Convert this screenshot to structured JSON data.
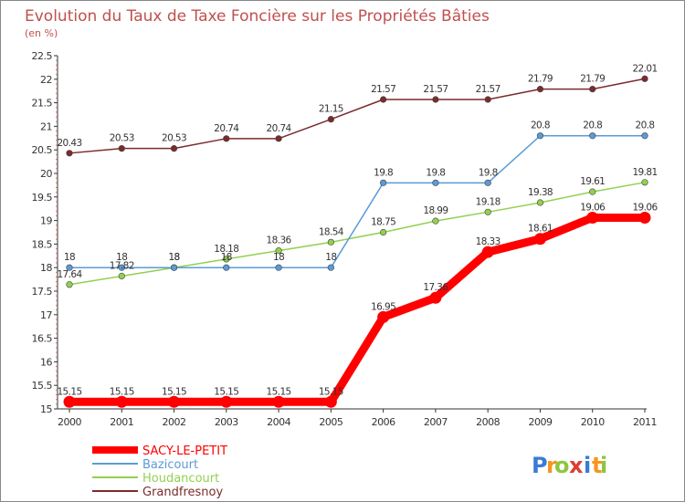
{
  "chart_data": {
    "type": "line",
    "title": "Evolution du Taux de Taxe Foncière sur les Propriétés Bâties",
    "unit_label": "(en %)",
    "x": [
      "2000",
      "2001",
      "2002",
      "2003",
      "2004",
      "2005",
      "2006",
      "2007",
      "2008",
      "2009",
      "2010",
      "2011"
    ],
    "ylim": [
      15,
      22.5
    ],
    "yticks": [
      "15",
      "15.5",
      "16",
      "16.5",
      "17",
      "17.5",
      "18",
      "18.5",
      "19",
      "19.5",
      "20",
      "20.5",
      "21",
      "21.5",
      "22",
      "22.5"
    ],
    "grid": false,
    "legend_position": "bottom-left",
    "series": [
      {
        "name": "SACY-LE-PETIT",
        "color": "#ff0000",
        "values": [
          15.15,
          15.15,
          15.15,
          15.15,
          15.15,
          15.15,
          16.95,
          17.36,
          18.33,
          18.61,
          19.06,
          19.06
        ],
        "labels": [
          "15.15",
          "15.15",
          "15.15",
          "15.15",
          "15.15",
          "15.15",
          "16.95",
          "17.36",
          "18.33",
          "18.61",
          "19.06",
          "19.06"
        ]
      },
      {
        "name": "Bazicourt",
        "color": "#5b9bd5",
        "values": [
          18,
          18,
          18,
          18,
          18,
          18,
          19.8,
          19.8,
          19.8,
          20.8,
          20.8,
          20.8
        ],
        "labels": [
          "18",
          "18",
          "18",
          "18",
          "18",
          "18",
          "19.8",
          "19.8",
          "19.8",
          "20.8",
          "20.8",
          "20.8"
        ]
      },
      {
        "name": "Houdancourt",
        "color": "#92d050",
        "values": [
          17.64,
          17.82,
          18,
          18.18,
          18.36,
          18.54,
          18.75,
          18.99,
          19.18,
          19.38,
          19.61,
          19.81
        ],
        "labels": [
          "17.64",
          "17.82",
          "18",
          "18.18",
          "18.36",
          "18.54",
          "18.75",
          "18.99",
          "19.18",
          "19.38",
          "19.61",
          "19.81"
        ]
      },
      {
        "name": "Grandfresnoy",
        "color": "#7b2b2b",
        "values": [
          20.43,
          20.53,
          20.53,
          20.74,
          20.74,
          21.15,
          21.57,
          21.57,
          21.57,
          21.79,
          21.79,
          22.01
        ],
        "labels": [
          "20.43",
          "20.53",
          "20.53",
          "20.74",
          "20.74",
          "21.15",
          "21.57",
          "21.57",
          "21.57",
          "21.79",
          "21.79",
          "22.01"
        ]
      }
    ]
  },
  "brand": {
    "letters": [
      "P",
      "r",
      "o",
      "x",
      "i",
      "t",
      "i"
    ],
    "colors": [
      "#3a7bd5",
      "#f7941d",
      "#8dc63f",
      "#e03c31",
      "#3a7bd5",
      "#f7941d",
      "#8dc63f"
    ]
  }
}
